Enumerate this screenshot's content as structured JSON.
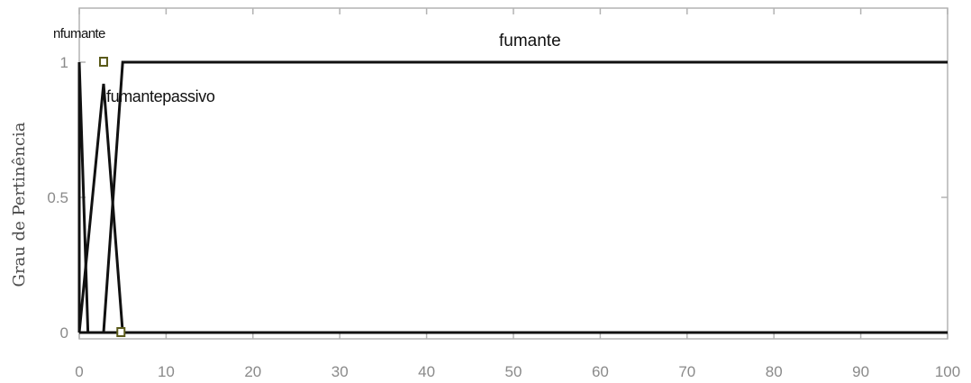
{
  "chart_data": {
    "type": "line",
    "title": "",
    "xlabel": "",
    "ylabel": "Grau de Pertinência",
    "xlim": [
      0,
      100
    ],
    "ylim": [
      0,
      1
    ],
    "grid": false,
    "legend": "none",
    "x_ticks": [
      "0",
      "10",
      "20",
      "30",
      "40",
      "50",
      "60",
      "70",
      "80",
      "90",
      "100"
    ],
    "y_ticks": [
      "0",
      "0.5",
      "1"
    ],
    "series": [
      {
        "name": "nfumante",
        "x": [
          0,
          0,
          1
        ],
        "y": [
          0,
          1,
          0
        ]
      },
      {
        "name": "fumantepassivo",
        "x": [
          0,
          2.8,
          5
        ],
        "y": [
          0,
          0.92,
          0
        ]
      },
      {
        "name": "fumante",
        "x": [
          2.8,
          5,
          100
        ],
        "y": [
          0,
          1,
          1
        ]
      }
    ],
    "baseline": {
      "x": [
        0,
        100
      ],
      "y": [
        0,
        0
      ]
    },
    "annotations": [
      {
        "text": "nfumante"
      },
      {
        "text": "fumantepassivo"
      },
      {
        "text": "fumante"
      }
    ],
    "markers": [
      {
        "x": 2.8,
        "y": 1
      },
      {
        "x": 4.8,
        "y": 0
      }
    ],
    "colors": {
      "line": "#111111",
      "axis": "#b3b3b3",
      "tick_text": "#8a8a8a",
      "marker": "#5a5a1a"
    }
  }
}
